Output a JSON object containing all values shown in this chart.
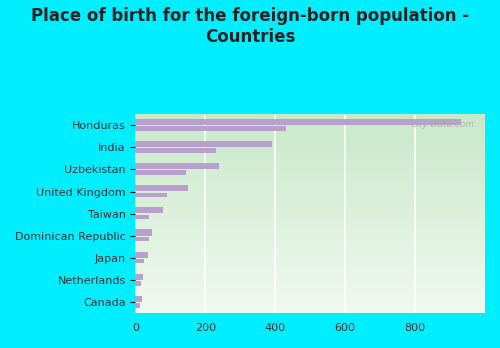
{
  "title": "Place of birth for the foreign-born population -\nCountries",
  "categories": [
    "Honduras",
    "India",
    "Uzbekistan",
    "United Kingdom",
    "Taiwan",
    "Dominican Republic",
    "Japan",
    "Netherlands",
    "Canada"
  ],
  "values_main": [
    930,
    390,
    240,
    150,
    80,
    48,
    35,
    22,
    18
  ],
  "values_second": [
    430,
    230,
    145,
    90,
    40,
    38,
    25,
    17,
    13
  ],
  "bar_color": "#b8a0cc",
  "bg_outer": "#00eeff",
  "bg_plot_top": "#c8e8c8",
  "bg_plot_bottom": "#f0f8f0",
  "watermark": "City-Data.com",
  "xlim": [
    0,
    1000
  ],
  "xticks": [
    0,
    200,
    400,
    600,
    800
  ],
  "title_fontsize": 12,
  "label_fontsize": 8,
  "tick_fontsize": 8
}
